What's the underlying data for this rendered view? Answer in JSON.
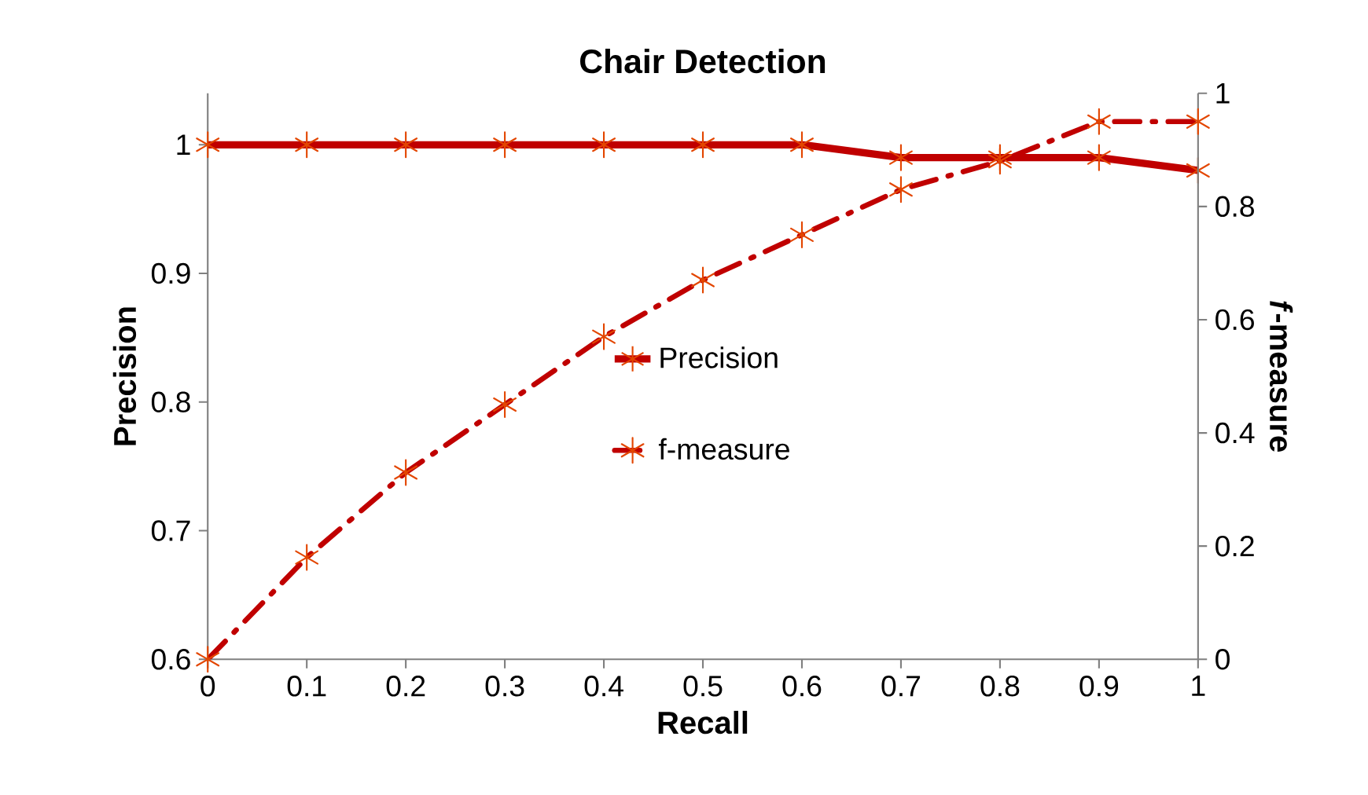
{
  "chart_data": {
    "type": "line",
    "title": "Chair Detection",
    "xlabel": "Recall",
    "ylabel": "Precision",
    "y2label": "*f*-measure",
    "x": [
      0,
      0.1,
      0.2,
      0.3,
      0.4,
      0.5,
      0.6,
      0.7,
      0.8,
      0.9,
      1
    ],
    "series": [
      {
        "name": "Precision",
        "color": "#c00000",
        "line_style": "solid",
        "values": [
          1,
          1,
          1,
          1,
          1,
          1,
          1,
          0.99,
          0.99,
          0.99,
          0.98
        ]
      },
      {
        "name": "f-measure",
        "color": "#c00000",
        "line_style": "dashed",
        "axis": "y2",
        "values": [
          0,
          0.18,
          0.33,
          0.45,
          0.57,
          0.67,
          0.75,
          0.83,
          0.88,
          0.95,
          0.95
        ]
      }
    ],
    "xlim": [
      0,
      1
    ],
    "ylim": [
      0.6,
      1.04
    ],
    "y2lim": [
      0,
      1
    ],
    "xticks": [
      0,
      0.1,
      0.2,
      0.3,
      0.4,
      0.5,
      0.6,
      0.7,
      0.8,
      0.9,
      1
    ],
    "yticks": [
      0.6,
      0.7,
      0.8,
      0.9,
      1
    ],
    "y2ticks": [
      0,
      0.2,
      0.4,
      0.6,
      0.8,
      1
    ],
    "marker": "cross",
    "legend": "center",
    "grid": false
  }
}
